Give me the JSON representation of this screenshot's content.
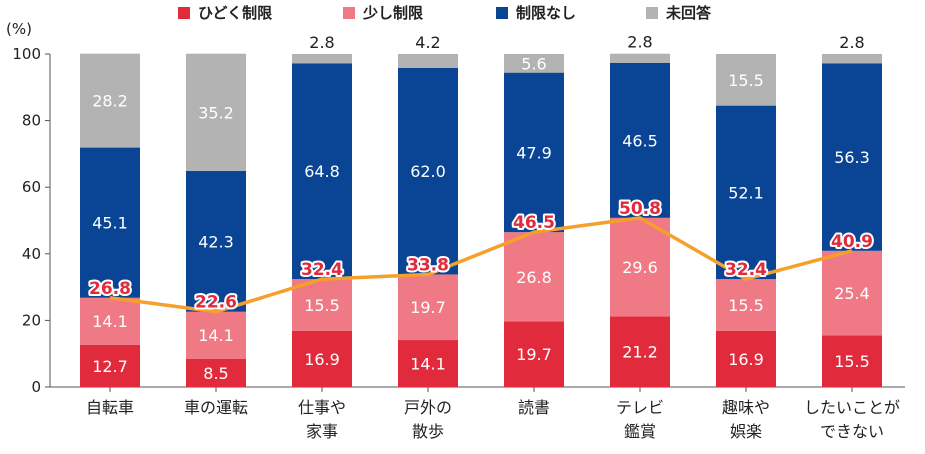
{
  "chart_data": {
    "type": "bar",
    "stacked": true,
    "unit_label": "(%)",
    "yticks": [
      0,
      20,
      40,
      60,
      80,
      100
    ],
    "ylim": [
      0,
      100
    ],
    "grid": false,
    "legend_position": "top",
    "categories": [
      [
        "自転車"
      ],
      [
        "車の運転"
      ],
      [
        "仕事や",
        "家事"
      ],
      [
        "戸外の",
        "散歩"
      ],
      [
        "読書"
      ],
      [
        "テレビ",
        "鑑賞"
      ],
      [
        "趣味や",
        "娯楽"
      ],
      [
        "したいことが",
        "できない"
      ]
    ],
    "series": [
      {
        "name": "ひどく制限",
        "color": "#e12b3c",
        "values": [
          12.7,
          8.5,
          16.9,
          14.1,
          19.7,
          21.2,
          16.9,
          15.5
        ]
      },
      {
        "name": "少し制限",
        "color": "#ef7a86",
        "values": [
          14.1,
          14.1,
          15.5,
          19.7,
          26.8,
          29.6,
          15.5,
          25.4
        ]
      },
      {
        "name": "制限なし",
        "color": "#0a4494",
        "values": [
          45.1,
          42.3,
          64.8,
          62.0,
          47.9,
          46.5,
          52.1,
          56.3
        ]
      },
      {
        "name": "未回答",
        "color": "#b3b3b3",
        "values": [
          28.2,
          35.2,
          2.8,
          4.2,
          5.6,
          2.8,
          15.5,
          2.8
        ]
      }
    ],
    "line": {
      "color": "#f5a02a",
      "label_color": "#e12b3c",
      "values": [
        26.8,
        22.6,
        32.4,
        33.8,
        46.5,
        50.8,
        32.4,
        40.9
      ]
    }
  }
}
